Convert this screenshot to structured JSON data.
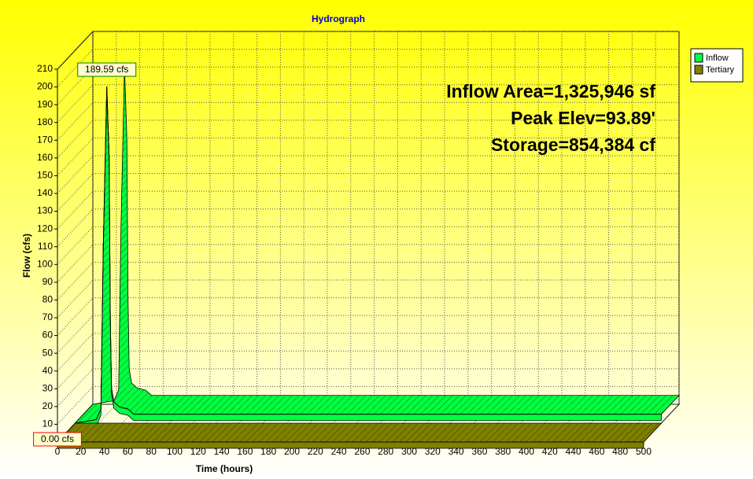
{
  "chart_data": {
    "type": "ribbon3d",
    "title": "Hydrograph",
    "x_label": "Time (hours)",
    "y_label": "Flow (cfs)",
    "annotations": [
      "Inflow Area=1,325,946 sf",
      "Peak Elev=93.89'",
      "Storage=854,384 cf"
    ],
    "xlim": [
      0,
      500
    ],
    "ylim": [
      0,
      210
    ],
    "xticks": [
      0,
      20,
      40,
      60,
      80,
      100,
      120,
      140,
      160,
      180,
      200,
      220,
      240,
      260,
      280,
      300,
      320,
      340,
      360,
      380,
      400,
      420,
      440,
      460,
      480,
      500
    ],
    "yticks": [
      0,
      10,
      20,
      30,
      40,
      50,
      60,
      70,
      80,
      90,
      100,
      110,
      120,
      130,
      140,
      150,
      160,
      170,
      180,
      190,
      200,
      210
    ],
    "grid": true,
    "legend": "top-right",
    "series": [
      {
        "name": "Inflow",
        "color": "#00ff40",
        "x": [
          0,
          18,
          22,
          24,
          27,
          29,
          30,
          31,
          33,
          38,
          45,
          50,
          500
        ],
        "values": [
          0,
          2,
          8,
          100,
          189.59,
          150,
          60,
          20,
          12,
          9,
          8,
          5,
          5
        ],
        "value_labels": [
          null,
          null,
          null,
          null,
          "189.59 cfs",
          null,
          null,
          null,
          null,
          null,
          null,
          null,
          null
        ]
      },
      {
        "name": "Tertiary",
        "color": "#808000",
        "x": [
          0,
          500
        ],
        "values": [
          0,
          0
        ],
        "value_labels": [
          "0.00 cfs",
          null
        ]
      }
    ]
  }
}
